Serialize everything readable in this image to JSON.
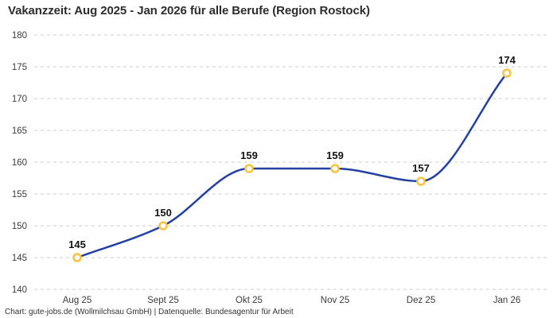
{
  "title": "Vakanzzeit: Aug 2025 - Jan 2026 für alle Berufe (Region Rostock)",
  "footer": "Chart: gute-jobs.de (Wollmilchsau GmbH) | Datenquelle: Bundesagentur für Arbeit",
  "chart_data": {
    "type": "line",
    "title": "Vakanzzeit: Aug 2025 - Jan 2026 für alle Berufe (Region Rostock)",
    "categories": [
      "Aug 25",
      "Sept 25",
      "Okt 25",
      "Nov 25",
      "Dez 25",
      "Jan 26"
    ],
    "series": [
      {
        "name": "Vakanzzeit",
        "values": [
          145,
          150,
          159,
          159,
          157,
          174
        ]
      }
    ],
    "data_labels": [
      "145",
      "150",
      "159",
      "159",
      "157",
      "174"
    ],
    "xlabel": "",
    "ylabel": "",
    "ylim": [
      140,
      180
    ],
    "yticks": [
      140,
      145,
      150,
      155,
      160,
      165,
      170,
      175,
      180
    ],
    "grid": "horizontal-dashed",
    "legend": "none",
    "curve": "monotone-spline",
    "colors": {
      "line": "#2340a5",
      "marker_ring": "#f9c440",
      "marker_fill": "#ffffff",
      "gridline": "#cccccc",
      "tick_label": "#3c3c3c",
      "data_label": "#141414",
      "title": "#2d2d2d",
      "footer": "#333333",
      "background": "#ffffff"
    }
  }
}
